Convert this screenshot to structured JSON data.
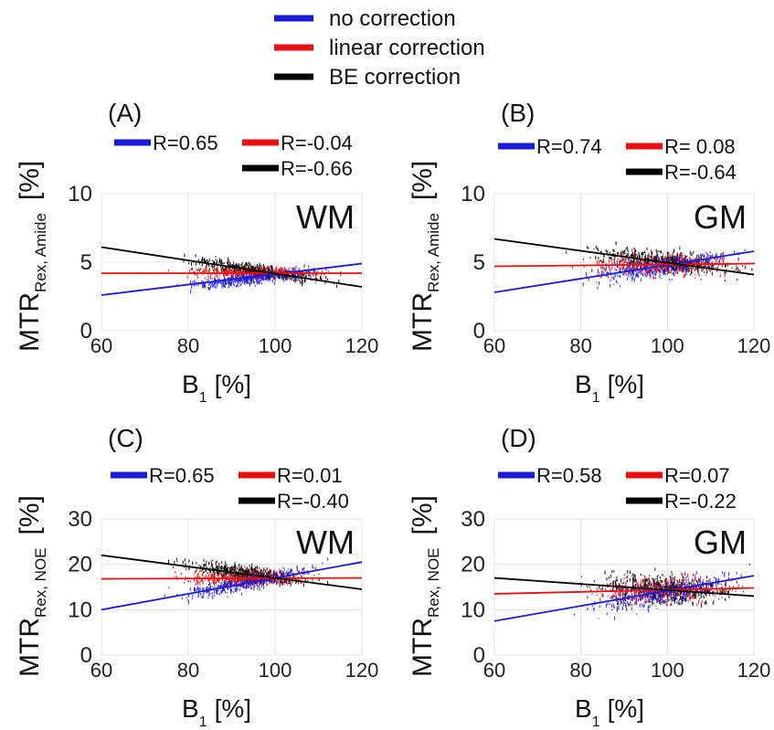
{
  "legend": [
    {
      "label": "no correction",
      "color": "#1a1adb"
    },
    {
      "label": "linear correction",
      "color": "#e81010"
    },
    {
      "label": "BE correction",
      "color": "#000000"
    }
  ],
  "xlabel_main": "B",
  "xlabel_sub": "1",
  "xlabel_unit": "[%]",
  "chart_data": [
    {
      "type": "scatter",
      "panel_label": "(A)",
      "region": "WM",
      "ylabel_main": "MTR",
      "ylabel_sub": "Rex, Amide",
      "ylabel_unit": "[%]",
      "xlim": [
        60,
        120
      ],
      "ylim": [
        0,
        10
      ],
      "xticks": [
        "60",
        "80",
        "100",
        "120"
      ],
      "yticks": [
        "0",
        "5",
        "10"
      ],
      "grid": true,
      "series": [
        {
          "name": "no correction",
          "color": "#1a1adb",
          "R": "R=0.65",
          "fit": [
            [
              60,
              2.6
            ],
            [
              120,
              4.9
            ]
          ],
          "cloud": {
            "xmin": 68,
            "xmax": 115,
            "center": [
              2.8,
              4.6
            ],
            "spread": 1.3
          }
        },
        {
          "name": "linear correction",
          "color": "#e81010",
          "R": "R=-0.04",
          "fit": [
            [
              60,
              4.2
            ],
            [
              120,
              4.2
            ]
          ],
          "cloud": {
            "xmin": 68,
            "xmax": 115,
            "center": [
              4.3,
              4.2
            ],
            "spread": 1.3
          }
        },
        {
          "name": "BE correction",
          "color": "#000000",
          "R": "R=-0.66",
          "fit": [
            [
              60,
              6.1
            ],
            [
              120,
              3.2
            ]
          ],
          "cloud": {
            "xmin": 68,
            "xmax": 115,
            "center": [
              5.7,
              3.5
            ],
            "spread": 1.3
          }
        }
      ]
    },
    {
      "type": "scatter",
      "panel_label": "(B)",
      "region": "GM",
      "ylabel_main": "MTR",
      "ylabel_sub": "Rex, Amide",
      "ylabel_unit": "[%]",
      "xlim": [
        60,
        120
      ],
      "ylim": [
        0,
        10
      ],
      "xticks": [
        "60",
        "80",
        "100",
        "120"
      ],
      "yticks": [
        "0",
        "5",
        "10"
      ],
      "grid": true,
      "series": [
        {
          "name": "no correction",
          "color": "#1a1adb",
          "R": "R=0.74",
          "fit": [
            [
              60,
              2.8
            ],
            [
              120,
              5.8
            ]
          ],
          "cloud": {
            "xmin": 70,
            "xmax": 120,
            "center": [
              3.4,
              5.6
            ],
            "spread": 2.4
          }
        },
        {
          "name": "linear correction",
          "color": "#e81010",
          "R": "R= 0.08",
          "fit": [
            [
              60,
              4.7
            ],
            [
              120,
              4.9
            ]
          ],
          "cloud": {
            "xmin": 70,
            "xmax": 120,
            "center": [
              4.7,
              4.9
            ],
            "spread": 2.4
          }
        },
        {
          "name": "BE correction",
          "color": "#000000",
          "R": "R=-0.64",
          "fit": [
            [
              60,
              6.7
            ],
            [
              120,
              4.1
            ]
          ],
          "cloud": {
            "xmin": 70,
            "xmax": 120,
            "center": [
              6.2,
              4.3
            ],
            "spread": 2.0
          }
        }
      ]
    },
    {
      "type": "scatter",
      "panel_label": "(C)",
      "region": "WM",
      "ylabel_main": "MTR",
      "ylabel_sub": "Rex, NOE",
      "ylabel_unit": "[%]",
      "xlim": [
        60,
        120
      ],
      "ylim": [
        0,
        30
      ],
      "xticks": [
        "60",
        "80",
        "100",
        "120"
      ],
      "yticks": [
        "0",
        "10",
        "20",
        "30"
      ],
      "grid": true,
      "series": [
        {
          "name": "no correction",
          "color": "#1a1adb",
          "R": "R=0.65",
          "fit": [
            [
              60,
              10
            ],
            [
              120,
              20.5
            ]
          ],
          "cloud": {
            "xmin": 68,
            "xmax": 112,
            "center": [
              11,
              19.5
            ],
            "spread": 5
          }
        },
        {
          "name": "linear correction",
          "color": "#e81010",
          "R": "R=0.01",
          "fit": [
            [
              60,
              16.8
            ],
            [
              120,
              17
            ]
          ],
          "cloud": {
            "xmin": 68,
            "xmax": 112,
            "center": [
              16.8,
              17
            ],
            "spread": 5
          }
        },
        {
          "name": "BE correction",
          "color": "#000000",
          "R": "R=-0.40",
          "fit": [
            [
              60,
              22
            ],
            [
              120,
              14.5
            ]
          ],
          "cloud": {
            "xmin": 68,
            "xmax": 112,
            "center": [
              21.5,
              15.5
            ],
            "spread": 5
          }
        }
      ]
    },
    {
      "type": "scatter",
      "panel_label": "(D)",
      "region": "GM",
      "ylabel_main": "MTR",
      "ylabel_sub": "Rex, NOE",
      "ylabel_unit": "[%]",
      "xlim": [
        60,
        120
      ],
      "ylim": [
        0,
        30
      ],
      "xticks": [
        "60",
        "80",
        "100",
        "120"
      ],
      "yticks": [
        "0",
        "10",
        "20",
        "30"
      ],
      "grid": true,
      "series": [
        {
          "name": "no correction",
          "color": "#1a1adb",
          "R": "R=0.58",
          "fit": [
            [
              60,
              7.5
            ],
            [
              120,
              17.5
            ]
          ],
          "cloud": {
            "xmin": 70,
            "xmax": 120,
            "center": [
              9,
              17
            ],
            "spread": 9
          }
        },
        {
          "name": "linear correction",
          "color": "#e81010",
          "R": "R=0.07",
          "fit": [
            [
              60,
              13.5
            ],
            [
              120,
              14.8
            ]
          ],
          "cloud": {
            "xmin": 70,
            "xmax": 120,
            "center": [
              13.8,
              14.7
            ],
            "spread": 9
          }
        },
        {
          "name": "BE correction",
          "color": "#000000",
          "R": "R=-0.22",
          "fit": [
            [
              60,
              17
            ],
            [
              120,
              13
            ]
          ],
          "cloud": {
            "xmin": 70,
            "xmax": 120,
            "center": [
              16.5,
              13.3
            ],
            "spread": 9
          }
        }
      ]
    }
  ]
}
